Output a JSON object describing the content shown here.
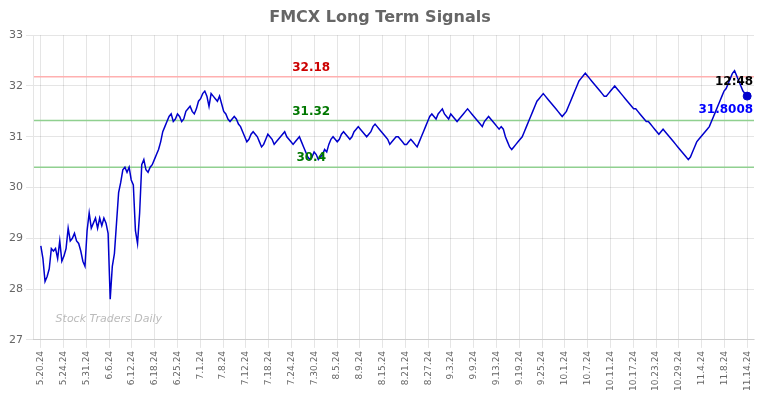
{
  "chart_data": {
    "type": "line",
    "title": "FMCX Long Term Signals",
    "color": "#0000cc",
    "x": [
      0,
      0.0923,
      0.1845,
      0.2768,
      0.369,
      0.4613,
      0.5536,
      0.6458,
      0.7381,
      0.8304,
      0.9226,
      1.0149,
      1.1071,
      1.1994,
      1.2917,
      1.3839,
      1.4762,
      1.5685,
      1.6607,
      1.753,
      1.8452,
      1.9375,
      2.0298,
      2.122,
      2.2143,
      2.3065,
      2.3988,
      2.4911,
      2.5833,
      2.6756,
      2.7679,
      2.8601,
      2.9524,
      3.0446,
      3.1369,
      3.2292,
      3.3214,
      3.4137,
      3.506,
      3.5982,
      3.6905,
      3.7827,
      3.875,
      3.9673,
      4.0595,
      4.1518,
      4.244,
      4.3363,
      4.4286,
      4.5208,
      4.6131,
      4.7054,
      4.7976,
      4.8899,
      4.9821,
      5.0744,
      5.1667,
      5.2589,
      5.3512,
      5.4435,
      5.5357,
      5.628,
      5.7202,
      5.8125,
      5.9048,
      5.997,
      6.0893,
      6.1815,
      6.2738,
      6.3661,
      6.4583,
      6.5506,
      6.6429,
      6.7351,
      6.8274,
      6.9196,
      7.0119,
      7.1042,
      7.1964,
      7.2887,
      7.381,
      7.4732,
      7.5655,
      7.6577,
      7.75,
      7.8423,
      7.9345,
      8.0268,
      8.119,
      8.2113,
      8.3036,
      8.3958,
      8.4881,
      8.5804,
      8.6726,
      8.7649,
      8.8571,
      8.9494,
      9.0417,
      9.1339,
      9.2262,
      9.3185,
      9.4107,
      9.503,
      9.5952,
      9.6875,
      9.7798,
      9.872,
      9.9643,
      10.0565,
      10.1488,
      10.2411,
      10.3333,
      10.4256,
      10.5179,
      10.6101,
      10.7024,
      10.7946,
      10.8869,
      10.9792,
      11.0714,
      11.1637,
      11.256,
      11.3482,
      11.4405,
      11.5327,
      11.625,
      11.7173,
      11.8095,
      11.9018,
      11.994,
      12.0863,
      12.1786,
      12.2708,
      12.3631,
      12.4554,
      12.5476,
      12.6399,
      12.7321,
      12.8244,
      12.9167,
      13.0089,
      13.1012,
      13.1935,
      13.2857,
      13.378,
      13.4702,
      13.5625,
      13.6548,
      13.747,
      13.8393,
      13.9315,
      14.0238,
      14.1161,
      14.2083,
      14.3006,
      14.3929,
      14.4851,
      14.5774,
      14.6696,
      14.7619,
      14.8542,
      14.9464,
      15.0387,
      15.131,
      15.2232,
      15.3155,
      15.4077,
      15.5,
      15.5923,
      15.6845,
      15.7768,
      15.869,
      15.9613,
      16.0536,
      16.1458,
      16.2381,
      16.3304,
      16.4226,
      16.5149,
      16.6071,
      16.6994,
      16.7917,
      16.8839,
      16.9762,
      17.0685,
      17.1607,
      17.253,
      17.3452,
      17.4375,
      17.5298,
      17.622,
      17.7143,
      17.8065,
      17.8988,
      17.9911,
      18.0833,
      18.1756,
      18.2679,
      18.3601,
      18.4524,
      18.5446,
      18.6369,
      18.7292,
      18.8214,
      18.9137,
      19.006,
      19.0982,
      19.1905,
      19.2827,
      19.375,
      19.4673,
      19.5595,
      19.6518,
      19.744,
      19.8363,
      19.9286,
      20.0208,
      20.1131,
      20.2054,
      20.2976,
      20.3899,
      20.4821,
      20.5744,
      20.6667,
      20.7589,
      20.8512,
      20.9435,
      21.0357,
      21.128,
      21.2202,
      21.3125,
      21.4048,
      21.497,
      21.5893,
      21.6815,
      21.7738,
      21.8661,
      21.9583,
      22.0506,
      22.1429,
      22.2351,
      22.3274,
      22.4196,
      22.5119,
      22.6042,
      22.6964,
      22.7887,
      22.881,
      22.9732,
      23.0655,
      23.1577,
      23.25,
      23.3423,
      23.4345,
      23.5268,
      23.619,
      23.7113,
      23.8036,
      23.8958,
      23.9881,
      24.0804,
      24.1726,
      24.2649,
      24.3571,
      24.4494,
      24.5417,
      24.6339,
      24.7262,
      24.8185,
      24.9107,
      25.003,
      25.0952,
      25.1875,
      25.2798,
      25.372,
      25.4643,
      25.5565,
      25.6488,
      25.7411,
      25.8333,
      25.9256,
      26.0179,
      26.1101,
      26.2024,
      26.2946,
      26.3869,
      26.4792,
      26.5714,
      26.6637,
      26.756,
      26.8482,
      26.9405,
      27.0327,
      27.125,
      27.2173,
      27.3095,
      27.4018,
      27.494,
      27.5863,
      27.6786,
      27.7708,
      27.8631,
      27.9554,
      28.0476,
      28.1399,
      28.2321,
      28.3244,
      28.4167,
      28.5089,
      28.6012,
      28.6935,
      28.7857,
      28.878,
      28.9702,
      29.0625,
      29.1548,
      29.247,
      29.3393,
      29.4315,
      29.5238,
      29.6161,
      29.7083,
      29.8006,
      29.8929,
      29.9851,
      30.0774,
      30.1696,
      30.2619,
      30.3542,
      30.4464,
      30.5387,
      30.631,
      30.7232,
      30.8155,
      30.9077,
      31
    ],
    "values": [
      28.85,
      28.6,
      28.15,
      28.25,
      28.4,
      28.8,
      28.75,
      28.8,
      28.6,
      28.95,
      28.55,
      28.65,
      28.8,
      29.2,
      28.95,
      29.0,
      29.1,
      28.95,
      28.9,
      28.75,
      28.55,
      28.45,
      29.15,
      29.5,
      29.2,
      29.3,
      29.4,
      29.2,
      29.4,
      29.25,
      29.4,
      29.3,
      29.1,
      27.8,
      28.45,
      28.7,
      29.3,
      29.9,
      30.1,
      30.35,
      30.4,
      30.3,
      30.4,
      30.15,
      30.05,
      29.15,
      28.9,
      29.5,
      30.45,
      30.55,
      30.35,
      30.3,
      30.4,
      30.45,
      30.55,
      30.65,
      30.75,
      30.9,
      31.1,
      31.2,
      31.3,
      31.4,
      31.45,
      31.3,
      31.35,
      31.45,
      31.4,
      31.3,
      31.35,
      31.5,
      31.55,
      31.6,
      31.5,
      31.45,
      31.55,
      31.7,
      31.75,
      31.85,
      31.9,
      31.8,
      31.6,
      31.85,
      31.8,
      31.75,
      31.7,
      31.8,
      31.65,
      31.5,
      31.45,
      31.35,
      31.3,
      31.35,
      31.4,
      31.35,
      31.25,
      31.2,
      31.1,
      31.0,
      30.9,
      30.95,
      31.05,
      31.1,
      31.05,
      31.0,
      30.9,
      30.8,
      30.85,
      30.95,
      31.05,
      31.0,
      30.95,
      30.85,
      30.9,
      30.95,
      31.0,
      31.05,
      31.1,
      31.0,
      30.95,
      30.9,
      30.85,
      30.9,
      30.95,
      31.0,
      30.9,
      30.8,
      30.7,
      30.6,
      30.55,
      30.6,
      30.7,
      30.65,
      30.55,
      30.6,
      30.65,
      30.75,
      30.7,
      30.85,
      30.95,
      31.0,
      30.95,
      30.9,
      30.95,
      31.05,
      31.1,
      31.05,
      31.0,
      30.95,
      31.0,
      31.1,
      31.15,
      31.2,
      31.15,
      31.1,
      31.05,
      31.0,
      31.05,
      31.1,
      31.2,
      31.25,
      31.2,
      31.15,
      31.1,
      31.05,
      31.0,
      30.95,
      30.85,
      30.9,
      30.95,
      31.0,
      31.0,
      30.95,
      30.9,
      30.85,
      30.85,
      30.9,
      30.95,
      30.9,
      30.85,
      30.8,
      30.9,
      31.0,
      31.1,
      31.2,
      31.3,
      31.4,
      31.45,
      31.4,
      31.35,
      31.45,
      31.5,
      31.55,
      31.45,
      31.4,
      31.35,
      31.45,
      31.4,
      31.35,
      31.3,
      31.35,
      31.4,
      31.45,
      31.5,
      31.55,
      31.5,
      31.45,
      31.4,
      31.35,
      31.3,
      31.25,
      31.2,
      31.3,
      31.35,
      31.4,
      31.35,
      31.3,
      31.25,
      31.2,
      31.15,
      31.2,
      31.15,
      31.0,
      30.9,
      30.8,
      30.75,
      30.8,
      30.85,
      30.9,
      30.95,
      31.0,
      31.1,
      31.2,
      31.3,
      31.4,
      31.5,
      31.6,
      31.7,
      31.75,
      31.8,
      31.85,
      31.8,
      31.75,
      31.7,
      31.65,
      31.6,
      31.55,
      31.5,
      31.45,
      31.4,
      31.45,
      31.5,
      31.6,
      31.7,
      31.8,
      31.9,
      32.0,
      32.1,
      32.15,
      32.2,
      32.25,
      32.2,
      32.15,
      32.1,
      32.05,
      32.0,
      31.95,
      31.9,
      31.85,
      31.8,
      31.8,
      31.85,
      31.9,
      31.95,
      32.0,
      31.95,
      31.9,
      31.85,
      31.8,
      31.75,
      31.7,
      31.65,
      31.6,
      31.55,
      31.55,
      31.5,
      31.45,
      31.4,
      31.35,
      31.3,
      31.3,
      31.25,
      31.2,
      31.15,
      31.1,
      31.05,
      31.1,
      31.15,
      31.1,
      31.05,
      31.0,
      30.95,
      30.9,
      30.85,
      30.8,
      30.75,
      30.7,
      30.65,
      30.6,
      30.55,
      30.6,
      30.7,
      30.8,
      30.9,
      30.95,
      31.0,
      31.05,
      31.1,
      31.15,
      31.2,
      31.3,
      31.4,
      31.5,
      31.6,
      31.7,
      31.8,
      31.9,
      31.95,
      32.05,
      32.15,
      32.25,
      32.3,
      32.2,
      32.1,
      32.0,
      31.9,
      31.85,
      31.8
    ],
    "xlim": [
      -0.3,
      31.3
    ],
    "xticks": [
      {
        "value": 0,
        "label": "5.20.24"
      },
      {
        "value": 1,
        "label": "5.24.24"
      },
      {
        "value": 2,
        "label": "5.31.24"
      },
      {
        "value": 3,
        "label": "6.6.24"
      },
      {
        "value": 4,
        "label": "6.12.24"
      },
      {
        "value": 5,
        "label": "6.18.24"
      },
      {
        "value": 6,
        "label": "6.25.24"
      },
      {
        "value": 7,
        "label": "7.1.24"
      },
      {
        "value": 8,
        "label": "7.8.24"
      },
      {
        "value": 9,
        "label": "7.12.24"
      },
      {
        "value": 10,
        "label": "7.18.24"
      },
      {
        "value": 11,
        "label": "7.24.24"
      },
      {
        "value": 12,
        "label": "7.30.24"
      },
      {
        "value": 13,
        "label": "8.5.24"
      },
      {
        "value": 14,
        "label": "8.9.24"
      },
      {
        "value": 15,
        "label": "8.15.24"
      },
      {
        "value": 16,
        "label": "8.21.24"
      },
      {
        "value": 17,
        "label": "8.27.24"
      },
      {
        "value": 18,
        "label": "9.3.24"
      },
      {
        "value": 19,
        "label": "9.9.24"
      },
      {
        "value": 20,
        "label": "9.13.24"
      },
      {
        "value": 21,
        "label": "9.19.24"
      },
      {
        "value": 22,
        "label": "9.25.24"
      },
      {
        "value": 23,
        "label": "10.1.24"
      },
      {
        "value": 24,
        "label": "10.7.24"
      },
      {
        "value": 25,
        "label": "10.11.24"
      },
      {
        "value": 26,
        "label": "10.17.24"
      },
      {
        "value": 27,
        "label": "10.23.24"
      },
      {
        "value": 28,
        "label": "10.29.24"
      },
      {
        "value": 29,
        "label": "11.4.24"
      },
      {
        "value": 30,
        "label": "11.8.24"
      },
      {
        "value": 31,
        "label": "11.14.24"
      }
    ],
    "ylim": [
      27,
      33
    ],
    "yticks": [
      27,
      28,
      29,
      30,
      31,
      32,
      33
    ],
    "grid": true,
    "hlines": [
      {
        "value": 32.18,
        "color": "#ffb0b0",
        "label": "32.18",
        "label_color": "#cc0000"
      },
      {
        "value": 31.32,
        "color": "#90d090",
        "label": "31.32",
        "label_color": "#007700"
      },
      {
        "value": 30.4,
        "color": "#90d090",
        "label": "30.4",
        "label_color": "#007700"
      }
    ],
    "last_point": {
      "x": 31,
      "value": 31.8008,
      "label": "31.8008",
      "time_label": "12:48",
      "color": "#0000cc",
      "label_color": "#0000ff"
    },
    "watermark": {
      "text": "Stock Traders Daily",
      "color": "#bbbbbb"
    }
  }
}
